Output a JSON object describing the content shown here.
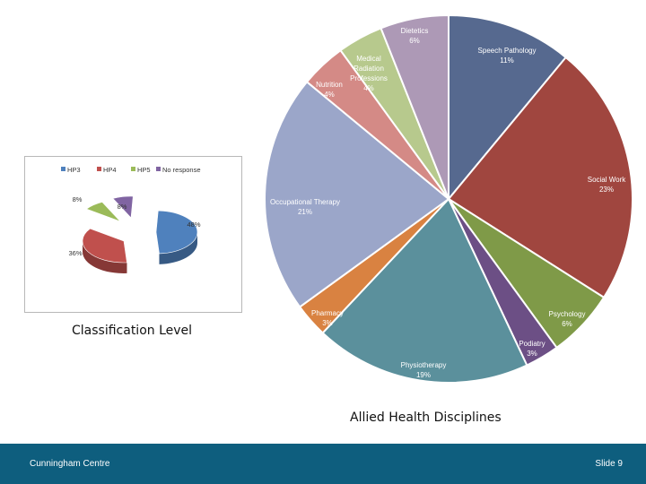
{
  "chart_data": [
    {
      "type": "pie",
      "title": "Classification Level",
      "legend_position": "top",
      "categories": [
        "HP3",
        "HP4",
        "HP5",
        "No response"
      ],
      "values": [
        48,
        36,
        8,
        8
      ],
      "labels": [
        "48%",
        "36%",
        "8%",
        "8%"
      ],
      "colors": [
        "#4f81bd",
        "#c0504d",
        "#9bbb59",
        "#8064a2"
      ]
    },
    {
      "type": "pie",
      "title": "Allied Health Disciplines",
      "categories": [
        "Speech Pathology",
        "Social Work",
        "Psychology",
        "Podiatry",
        "Physiotherapy",
        "Pharmacy",
        "Occupational Therapy",
        "Nutrition",
        "Medical Radiation Professions",
        "Dietetics"
      ],
      "values": [
        11,
        23,
        6,
        3,
        19,
        3,
        21,
        4,
        4,
        6
      ],
      "labels": [
        "11%",
        "23%",
        "6%",
        "3%",
        "19%",
        "3%",
        "21%",
        "4%",
        "4%",
        "6%"
      ],
      "colors": [
        "#56698f",
        "#a0463f",
        "#7f9a48",
        "#6c4f85",
        "#5b909c",
        "#d98241",
        "#9ba6c9",
        "#d48a86",
        "#b7c98d",
        "#ad99b6"
      ]
    }
  ],
  "footer": {
    "left": "Cunningham Centre",
    "right": "Slide 9"
  }
}
